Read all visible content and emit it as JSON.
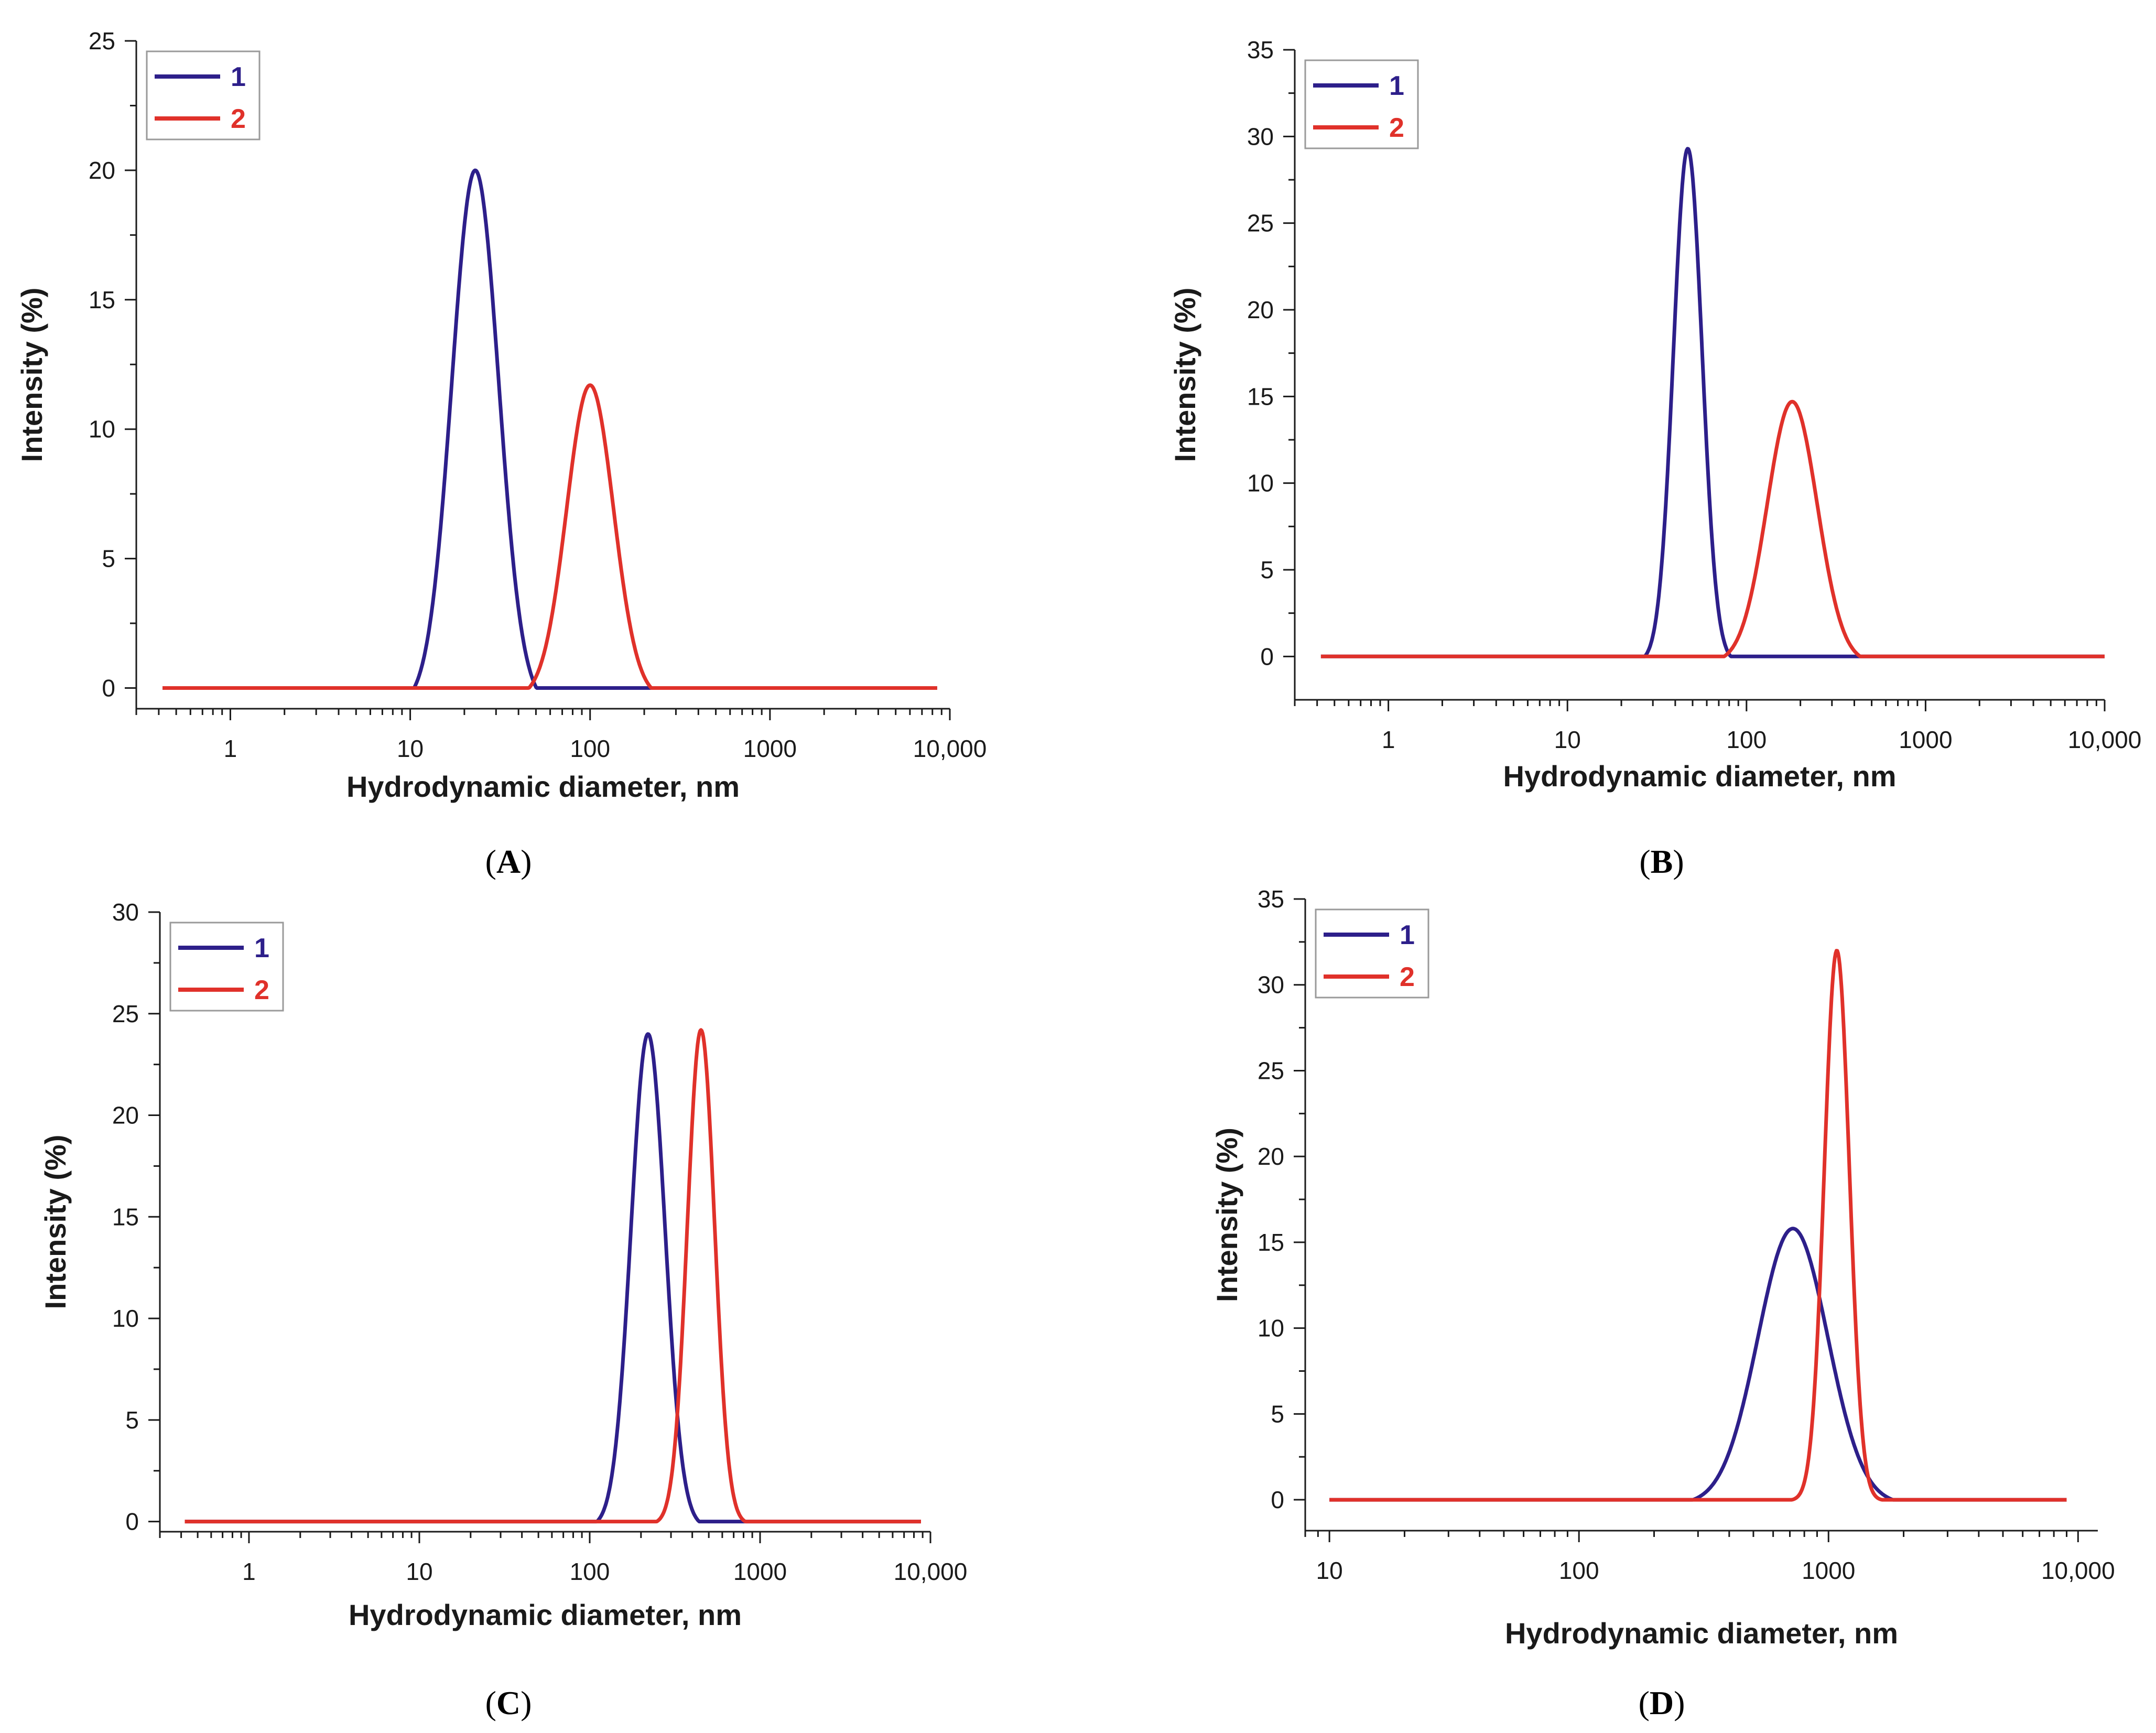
{
  "colors": {
    "series_1": "#2d1f8a",
    "series_2": "#e0312a",
    "axis": "#1a1a1a",
    "legend_border": "#9a9a9a"
  },
  "chart_data": [
    {
      "id": "A",
      "panel_label": "A",
      "type": "line",
      "xscale": "log",
      "xlabel": "Hydrodynamic diameter, nm",
      "ylabel": "Intensity (%)",
      "xlim": [
        0.42,
        8500
      ],
      "ylim": [
        0,
        25
      ],
      "xlim_axis": [
        0.3,
        10000
      ],
      "ylim_axis": [
        -0.8,
        25
      ],
      "yticks": [
        0,
        5,
        10,
        15,
        20,
        25
      ],
      "xticks": [
        {
          "v": 1,
          "label": "1"
        },
        {
          "v": 10,
          "label": "10"
        },
        {
          "v": 100,
          "label": "100"
        },
        {
          "v": 1000,
          "label": "1000"
        },
        {
          "v": 10000,
          "label": "10,000"
        }
      ],
      "legend_position": "top-left",
      "series": [
        {
          "name": "1",
          "color": "#2d1f8a",
          "peak_x": 23,
          "peak_y": 20.0,
          "sigma_log10": 0.13,
          "cutoff_log10": 0.34
        },
        {
          "name": "2",
          "color": "#e0312a",
          "peak_x": 100,
          "peak_y": 11.7,
          "sigma_log10": 0.13,
          "cutoff_log10": 0.34
        }
      ]
    },
    {
      "id": "B",
      "panel_label": "B",
      "type": "line",
      "xscale": "log",
      "xlabel": "Hydrodynamic diameter, nm",
      "ylabel": "Intensity (%)",
      "xlim": [
        0.42,
        10000
      ],
      "ylim": [
        0,
        35
      ],
      "xlim_axis": [
        0.3,
        10000
      ],
      "ylim_axis": [
        -2.5,
        35
      ],
      "yticks": [
        0,
        5,
        10,
        15,
        20,
        25,
        30,
        35
      ],
      "xticks": [
        {
          "v": 1,
          "label": "1"
        },
        {
          "v": 10,
          "label": "10"
        },
        {
          "v": 100,
          "label": "100"
        },
        {
          "v": 1000,
          "label": "1000"
        },
        {
          "v": 10000,
          "label": "10,000"
        }
      ],
      "legend_position": "top-left",
      "series": [
        {
          "name": "1",
          "color": "#2d1f8a",
          "peak_x": 47,
          "peak_y": 29.3,
          "sigma_log10": 0.08,
          "cutoff_log10": 0.24
        },
        {
          "name": "2",
          "color": "#e0312a",
          "peak_x": 180,
          "peak_y": 14.7,
          "sigma_log10": 0.14,
          "cutoff_log10": 0.38
        }
      ]
    },
    {
      "id": "C",
      "panel_label": "C",
      "type": "line",
      "xscale": "log",
      "xlabel": "Hydrodynamic diameter, nm",
      "ylabel": "Intensity (%)",
      "xlim": [
        0.42,
        8800
      ],
      "ylim": [
        0,
        30
      ],
      "xlim_axis": [
        0.3,
        10000
      ],
      "ylim_axis": [
        -0.5,
        30
      ],
      "yticks": [
        0,
        5,
        10,
        15,
        20,
        25,
        30
      ],
      "xticks": [
        {
          "v": 1,
          "label": "1"
        },
        {
          "v": 10,
          "label": "10"
        },
        {
          "v": 100,
          "label": "100"
        },
        {
          "v": 1000,
          "label": "1000"
        },
        {
          "v": 10000,
          "label": "10,000"
        }
      ],
      "legend_position": "top-left",
      "series": [
        {
          "name": "1",
          "color": "#2d1f8a",
          "peak_x": 220,
          "peak_y": 24.0,
          "sigma_log10": 0.1,
          "cutoff_log10": 0.3
        },
        {
          "name": "2",
          "color": "#e0312a",
          "peak_x": 450,
          "peak_y": 24.2,
          "sigma_log10": 0.08,
          "cutoff_log10": 0.26
        }
      ]
    },
    {
      "id": "D",
      "panel_label": "D",
      "type": "line",
      "xscale": "log",
      "xlabel": "Hydrodynamic diameter, nm",
      "ylabel": "Intensity (%)",
      "xlim": [
        10,
        9000
      ],
      "ylim": [
        0,
        35
      ],
      "xlim_axis": [
        8,
        12000
      ],
      "ylim_axis": [
        -1.8,
        35
      ],
      "yticks": [
        0,
        5,
        10,
        15,
        20,
        25,
        30,
        35
      ],
      "xticks": [
        {
          "v": 10,
          "label": "10"
        },
        {
          "v": 100,
          "label": "100"
        },
        {
          "v": 1000,
          "label": "1000"
        },
        {
          "v": 10000,
          "label": "10,000"
        }
      ],
      "legend_position": "top-left",
      "series": [
        {
          "name": "1",
          "color": "#2d1f8a",
          "peak_x": 720,
          "peak_y": 15.8,
          "sigma_log10": 0.14,
          "cutoff_log10": 0.4
        },
        {
          "name": "2",
          "color": "#e0312a",
          "peak_x": 1080,
          "peak_y": 32.0,
          "sigma_log10": 0.05,
          "cutoff_log10": 0.18
        }
      ]
    }
  ]
}
